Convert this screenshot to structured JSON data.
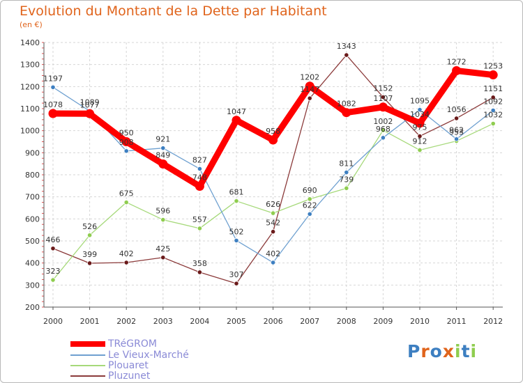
{
  "title": "Evolution du Montant de la Dette par Habitant",
  "unit": "(en €)",
  "logo_text": "Proxiti",
  "chart_data": {
    "type": "line",
    "title": "Evolution du Montant de la Dette par Habitant",
    "subtitle": "(en €)",
    "categories": [
      "2000",
      "2001",
      "2002",
      "2003",
      "2004",
      "2005",
      "2006",
      "2007",
      "2008",
      "2009",
      "2010",
      "2011",
      "2012"
    ],
    "ylim": [
      200,
      1400
    ],
    "yticks": [
      200,
      300,
      400,
      500,
      600,
      700,
      800,
      900,
      1000,
      1100,
      1200,
      1300,
      1400
    ],
    "grid": true,
    "legend_position": "bottom-left",
    "series": [
      {
        "name": "TRéGROM",
        "color": "#ff0000",
        "marker": "#ff0000",
        "values": [
          1078,
          1077,
          950,
          849,
          748,
          1047,
          958,
          1202,
          1082,
          1107,
          1034,
          1272,
          1253
        ],
        "labels": [
          "1078",
          "1077",
          "950",
          "849",
          "748",
          "1047",
          "958",
          "1202",
          "1082",
          "1107",
          "1034",
          "1272",
          "1253"
        ]
      },
      {
        "name": "Le Vieux-Marché",
        "color": "#6ea0d0",
        "marker": "#3d7fc1",
        "values": [
          1197,
          1089,
          908,
          921,
          827,
          502,
          402,
          622,
          811,
          968,
          1095,
          962,
          1092
        ],
        "labels": [
          "1197",
          "1089",
          "908",
          "921",
          "827",
          "502",
          "402",
          "622",
          "811",
          "968",
          "1095",
          "962",
          "1092"
        ]
      },
      {
        "name": "Plouaret",
        "color": "#a6d97a",
        "marker": "#8fcd4f",
        "values": [
          323,
          526,
          675,
          596,
          557,
          681,
          626,
          690,
          739,
          1002,
          912,
          953,
          1032
        ],
        "labels": [
          "323",
          "526",
          "675",
          "596",
          "557",
          "681",
          "626",
          "690",
          "739",
          "1002",
          "912",
          "953",
          "1032"
        ]
      },
      {
        "name": "Pluzunet",
        "color": "#8b3a3a",
        "marker": "#6a1a1a",
        "values": [
          466,
          399,
          402,
          425,
          358,
          307,
          542,
          1147,
          1343,
          1152,
          975,
          1056,
          1151
        ],
        "labels": [
          "466",
          "399",
          "402",
          "425",
          "358",
          "307",
          "542",
          "1147",
          "1343",
          "1152",
          "975",
          "1056",
          "1151"
        ]
      }
    ]
  }
}
